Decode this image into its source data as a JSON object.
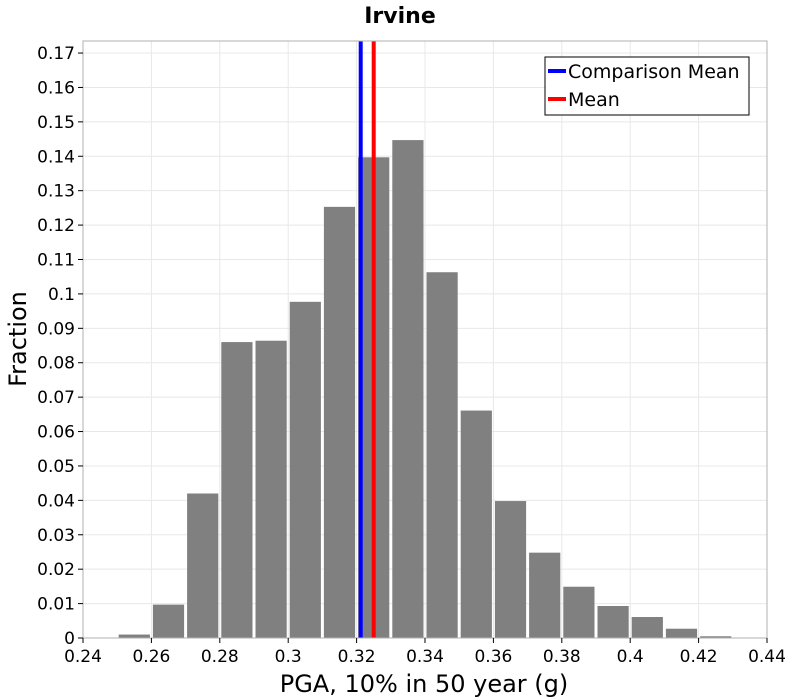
{
  "chart_data": {
    "type": "bar",
    "title": "Irvine",
    "xlabel": "PGA, 10% in 50 year (g)",
    "ylabel": "Fraction",
    "xlim": [
      0.24,
      0.44
    ],
    "ylim": [
      0,
      0.1735
    ],
    "x_ticks": [
      "0.24",
      "0.26",
      "0.28",
      "0.3",
      "0.32",
      "0.34",
      "0.36",
      "0.38",
      "0.4",
      "0.42",
      "0.44"
    ],
    "y_ticks": [
      "0",
      "0.01",
      "0.02",
      "0.03",
      "0.04",
      "0.05",
      "0.06",
      "0.07",
      "0.08",
      "0.09",
      "0.1",
      "0.11",
      "0.12",
      "0.13",
      "0.14",
      "0.15",
      "0.16",
      "0.17"
    ],
    "bin_width": 0.01,
    "bins": [
      {
        "x": 0.255,
        "value": 0.001
      },
      {
        "x": 0.265,
        "value": 0.0097
      },
      {
        "x": 0.275,
        "value": 0.042
      },
      {
        "x": 0.285,
        "value": 0.086
      },
      {
        "x": 0.295,
        "value": 0.0864
      },
      {
        "x": 0.305,
        "value": 0.0977
      },
      {
        "x": 0.315,
        "value": 0.1253
      },
      {
        "x": 0.325,
        "value": 0.1397
      },
      {
        "x": 0.335,
        "value": 0.1447
      },
      {
        "x": 0.345,
        "value": 0.1063
      },
      {
        "x": 0.355,
        "value": 0.0661
      },
      {
        "x": 0.365,
        "value": 0.0398
      },
      {
        "x": 0.375,
        "value": 0.0248
      },
      {
        "x": 0.385,
        "value": 0.0149
      },
      {
        "x": 0.395,
        "value": 0.0093
      },
      {
        "x": 0.405,
        "value": 0.0061
      },
      {
        "x": 0.415,
        "value": 0.0027
      },
      {
        "x": 0.425,
        "value": 0.0005
      }
    ],
    "vlines": [
      {
        "name": "Comparison Mean",
        "x": 0.3212,
        "color": "#0000ff"
      },
      {
        "name": "Mean",
        "x": 0.325,
        "color": "#ff0000"
      }
    ],
    "bar_color": "#808080",
    "grid": true,
    "legend_position": "top-right"
  }
}
